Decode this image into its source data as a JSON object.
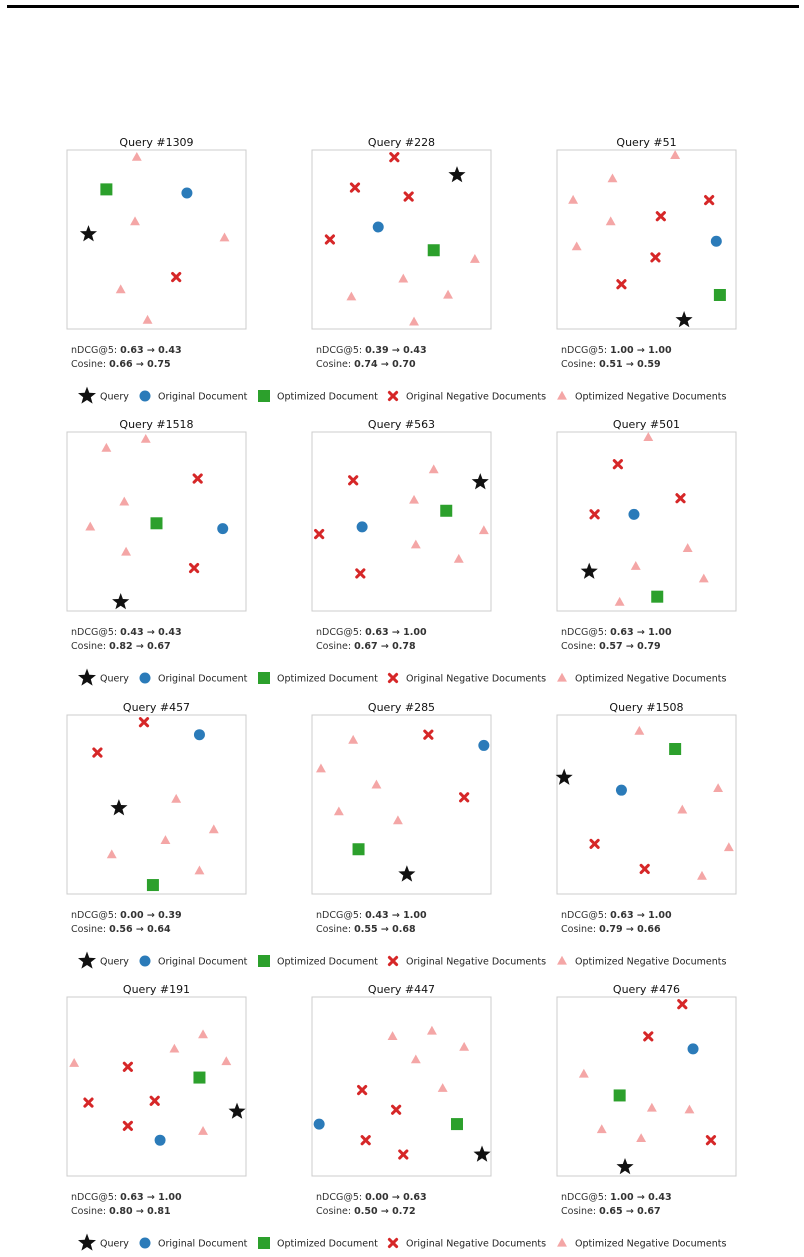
{
  "colors": {
    "query": "#111111",
    "original_document": "#2b7bb9",
    "optimized_document": "#2ca02c",
    "original_negative": "#d62728",
    "optimized_negative": "#f4a6a6"
  },
  "legend": [
    {
      "key": "query",
      "label": "Query",
      "icon": "star-icon"
    },
    {
      "key": "original_document",
      "label": "Original Document",
      "icon": "circle-icon"
    },
    {
      "key": "optimized_document",
      "label": "Optimized Document",
      "icon": "square-icon"
    },
    {
      "key": "original_negative",
      "label": "Original Negative Documents",
      "icon": "x-icon"
    },
    {
      "key": "optimized_negative",
      "label": "Optimized Negative Documents",
      "icon": "triangle-icon"
    }
  ],
  "metrics_labels": {
    "ndcg": "nDCG@5:",
    "cosine": "Cosine:",
    "arrow": "→"
  },
  "chart_data": [
    {
      "type": "scatter",
      "title": "Query #1309",
      "ndcg": [
        "0.63",
        "0.43"
      ],
      "cosine": [
        "0.66",
        "0.75"
      ],
      "query": [
        0.12,
        0.53
      ],
      "original_document": [
        0.67,
        0.76
      ],
      "optimized_document": [
        0.22,
        0.78
      ],
      "original_negative": [
        [
          0.61,
          0.29
        ]
      ],
      "optimized_negative": [
        [
          0.39,
          0.96
        ],
        [
          0.38,
          0.6
        ],
        [
          0.88,
          0.51
        ],
        [
          0.3,
          0.22
        ],
        [
          0.45,
          0.05
        ]
      ]
    },
    {
      "type": "scatter",
      "title": "Query #228",
      "ndcg": [
        "0.39",
        "0.43"
      ],
      "cosine": [
        "0.74",
        "0.70"
      ],
      "query": [
        0.81,
        0.86
      ],
      "original_document": [
        0.37,
        0.57
      ],
      "optimized_document": [
        0.68,
        0.44
      ],
      "original_negative": [
        [
          0.46,
          0.96
        ],
        [
          0.24,
          0.79
        ],
        [
          0.54,
          0.74
        ],
        [
          0.1,
          0.5
        ]
      ],
      "optimized_negative": [
        [
          0.91,
          0.39
        ],
        [
          0.51,
          0.28
        ],
        [
          0.22,
          0.18
        ],
        [
          0.76,
          0.19
        ],
        [
          0.57,
          0.04
        ]
      ]
    },
    {
      "type": "scatter",
      "title": "Query #51",
      "ndcg": [
        "1.00",
        "1.00"
      ],
      "cosine": [
        "0.51",
        "0.59"
      ],
      "query": [
        0.71,
        0.05
      ],
      "original_document": [
        0.89,
        0.49
      ],
      "optimized_document": [
        0.91,
        0.19
      ],
      "original_negative": [
        [
          0.58,
          0.63
        ],
        [
          0.85,
          0.72
        ],
        [
          0.55,
          0.4
        ],
        [
          0.36,
          0.25
        ]
      ],
      "optimized_negative": [
        [
          0.66,
          0.97
        ],
        [
          0.31,
          0.84
        ],
        [
          0.09,
          0.72
        ],
        [
          0.3,
          0.6
        ],
        [
          0.11,
          0.46
        ]
      ]
    },
    {
      "type": "scatter",
      "title": "Query #1518",
      "ndcg": [
        "0.43",
        "0.43"
      ],
      "cosine": [
        "0.82",
        "0.67"
      ],
      "query": [
        0.3,
        0.05
      ],
      "original_document": [
        0.87,
        0.46
      ],
      "optimized_document": [
        0.5,
        0.49
      ],
      "original_negative": [
        [
          0.73,
          0.74
        ],
        [
          0.71,
          0.24
        ]
      ],
      "optimized_negative": [
        [
          0.22,
          0.91
        ],
        [
          0.44,
          0.96
        ],
        [
          0.32,
          0.61
        ],
        [
          0.13,
          0.47
        ],
        [
          0.33,
          0.33
        ]
      ]
    },
    {
      "type": "scatter",
      "title": "Query #563",
      "ndcg": [
        "0.63",
        "1.00"
      ],
      "cosine": [
        "0.67",
        "0.78"
      ],
      "query": [
        0.94,
        0.72
      ],
      "original_document": [
        0.28,
        0.47
      ],
      "optimized_document": [
        0.75,
        0.56
      ],
      "original_negative": [
        [
          0.23,
          0.73
        ],
        [
          0.04,
          0.43
        ],
        [
          0.27,
          0.21
        ]
      ],
      "optimized_negative": [
        [
          0.68,
          0.79
        ],
        [
          0.57,
          0.62
        ],
        [
          0.58,
          0.37
        ],
        [
          0.82,
          0.29
        ],
        [
          0.96,
          0.45
        ]
      ]
    },
    {
      "type": "scatter",
      "title": "Query #501",
      "ndcg": [
        "0.63",
        "1.00"
      ],
      "cosine": [
        "0.57",
        "0.79"
      ],
      "query": [
        0.18,
        0.22
      ],
      "original_document": [
        0.43,
        0.54
      ],
      "optimized_document": [
        0.56,
        0.08
      ],
      "original_negative": [
        [
          0.34,
          0.82
        ],
        [
          0.69,
          0.63
        ],
        [
          0.21,
          0.54
        ]
      ],
      "optimized_negative": [
        [
          0.51,
          0.97
        ],
        [
          0.73,
          0.35
        ],
        [
          0.44,
          0.25
        ],
        [
          0.82,
          0.18
        ],
        [
          0.35,
          0.05
        ]
      ]
    },
    {
      "type": "scatter",
      "title": "Query #457",
      "ndcg": [
        "0.00",
        "0.39"
      ],
      "cosine": [
        "0.56",
        "0.64"
      ],
      "query": [
        0.29,
        0.48
      ],
      "original_document": [
        0.74,
        0.89
      ],
      "optimized_document": [
        0.48,
        0.05
      ],
      "original_negative": [
        [
          0.43,
          0.96
        ],
        [
          0.17,
          0.79
        ]
      ],
      "optimized_negative": [
        [
          0.61,
          0.53
        ],
        [
          0.82,
          0.36
        ],
        [
          0.55,
          0.3
        ],
        [
          0.25,
          0.22
        ],
        [
          0.74,
          0.13
        ]
      ]
    },
    {
      "type": "scatter",
      "title": "Query #285",
      "ndcg": [
        "0.43",
        "1.00"
      ],
      "cosine": [
        "0.55",
        "0.68"
      ],
      "query": [
        0.53,
        0.11
      ],
      "original_document": [
        0.96,
        0.83
      ],
      "optimized_document": [
        0.26,
        0.25
      ],
      "original_negative": [
        [
          0.65,
          0.89
        ],
        [
          0.85,
          0.54
        ]
      ],
      "optimized_negative": [
        [
          0.23,
          0.86
        ],
        [
          0.05,
          0.7
        ],
        [
          0.36,
          0.61
        ],
        [
          0.15,
          0.46
        ],
        [
          0.48,
          0.41
        ]
      ]
    },
    {
      "type": "scatter",
      "title": "Query #1508",
      "ndcg": [
        "0.63",
        "1.00"
      ],
      "cosine": [
        "0.79",
        "0.66"
      ],
      "query": [
        0.04,
        0.65
      ],
      "original_document": [
        0.36,
        0.58
      ],
      "optimized_document": [
        0.66,
        0.81
      ],
      "original_negative": [
        [
          0.21,
          0.28
        ],
        [
          0.49,
          0.14
        ]
      ],
      "optimized_negative": [
        [
          0.46,
          0.91
        ],
        [
          0.9,
          0.59
        ],
        [
          0.7,
          0.47
        ],
        [
          0.96,
          0.26
        ],
        [
          0.81,
          0.1
        ]
      ]
    },
    {
      "type": "scatter",
      "title": "Query #191",
      "ndcg": [
        "0.63",
        "1.00"
      ],
      "cosine": [
        "0.80",
        "0.81"
      ],
      "query": [
        0.95,
        0.36
      ],
      "original_document": [
        0.52,
        0.2
      ],
      "optimized_document": [
        0.74,
        0.55
      ],
      "original_negative": [
        [
          0.34,
          0.61
        ],
        [
          0.49,
          0.42
        ],
        [
          0.12,
          0.41
        ],
        [
          0.34,
          0.28
        ]
      ],
      "optimized_negative": [
        [
          0.04,
          0.63
        ],
        [
          0.6,
          0.71
        ],
        [
          0.76,
          0.79
        ],
        [
          0.89,
          0.64
        ],
        [
          0.76,
          0.25
        ]
      ]
    },
    {
      "type": "scatter",
      "title": "Query #447",
      "ndcg": [
        "0.00",
        "0.63"
      ],
      "cosine": [
        "0.50",
        "0.72"
      ],
      "query": [
        0.95,
        0.12
      ],
      "original_document": [
        0.04,
        0.29
      ],
      "optimized_document": [
        0.81,
        0.29
      ],
      "original_negative": [
        [
          0.28,
          0.48
        ],
        [
          0.47,
          0.37
        ],
        [
          0.3,
          0.2
        ],
        [
          0.51,
          0.12
        ]
      ],
      "optimized_negative": [
        [
          0.45,
          0.78
        ],
        [
          0.67,
          0.81
        ],
        [
          0.58,
          0.65
        ],
        [
          0.85,
          0.72
        ],
        [
          0.73,
          0.49
        ]
      ]
    },
    {
      "type": "scatter",
      "title": "Query #476",
      "ndcg": [
        "1.00",
        "0.43"
      ],
      "cosine": [
        "0.65",
        "0.67"
      ],
      "query": [
        0.38,
        0.05
      ],
      "original_document": [
        0.76,
        0.71
      ],
      "optimized_document": [
        0.35,
        0.45
      ],
      "original_negative": [
        [
          0.7,
          0.96
        ],
        [
          0.51,
          0.78
        ],
        [
          0.86,
          0.2
        ]
      ],
      "optimized_negative": [
        [
          0.15,
          0.57
        ],
        [
          0.53,
          0.38
        ],
        [
          0.74,
          0.37
        ],
        [
          0.25,
          0.26
        ],
        [
          0.47,
          0.21
        ]
      ]
    }
  ]
}
